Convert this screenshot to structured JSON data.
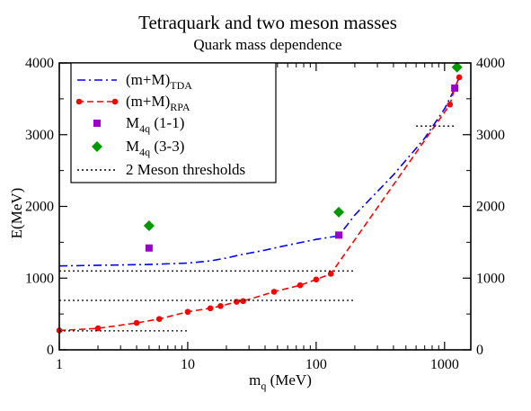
{
  "chart_data": {
    "type": "line",
    "title": "Tetraquark and two meson masses",
    "subtitle": "Quark mass dependence",
    "xlabel": "m",
    "xlabel_sub": "q",
    "xlabel_unit": " (MeV)",
    "ylabel": "E(MeV)",
    "x_scale": "log",
    "xlim": [
      1,
      1600
    ],
    "ylim": [
      0,
      4000
    ],
    "x_ticks": [
      {
        "v": 1,
        "label": "1"
      },
      {
        "v": 10,
        "label": "10"
      },
      {
        "v": 100,
        "label": "100"
      },
      {
        "v": 1000,
        "label": "1000"
      }
    ],
    "y_ticks": [
      {
        "v": 0,
        "label": "0"
      },
      {
        "v": 1000,
        "label": "1000"
      },
      {
        "v": 2000,
        "label": "2000"
      },
      {
        "v": 3000,
        "label": "3000"
      },
      {
        "v": 4000,
        "label": "4000"
      }
    ],
    "right_axis": true,
    "grid": false,
    "legend_position": "top-left",
    "series": [
      {
        "name": "(m+M)",
        "name_sub": "TDA",
        "kind": "line",
        "color": "#0000ff",
        "dash": "dashdot",
        "x": [
          1,
          5,
          10,
          15,
          20,
          25,
          40,
          60,
          100,
          150,
          200,
          400,
          700,
          1000,
          1200,
          1300
        ],
        "y": [
          1170,
          1190,
          1210,
          1240,
          1280,
          1320,
          1390,
          1460,
          1540,
          1590,
          1880,
          2440,
          2950,
          3360,
          3640,
          3800
        ]
      },
      {
        "name": "(m+M)",
        "name_sub": "RPA",
        "kind": "line-markers",
        "color": "#ff0000",
        "dash": "dashed",
        "x": [
          1,
          2,
          4,
          6,
          10,
          15,
          18,
          24,
          27,
          47,
          75,
          100,
          130,
          1100,
          1200,
          1300
        ],
        "y": [
          270,
          300,
          375,
          430,
          530,
          580,
          610,
          670,
          680,
          810,
          900,
          980,
          1060,
          3420,
          3650,
          3800
        ]
      },
      {
        "name": "M",
        "name_sub": "4q",
        "name_suffix": " (1-1)",
        "kind": "markers",
        "marker": "square",
        "color": "#9900cc",
        "x": [
          5,
          150,
          1200
        ],
        "y": [
          1420,
          1600,
          3650
        ]
      },
      {
        "name": "M",
        "name_sub": "4q",
        "name_suffix": " (3-3)",
        "kind": "markers",
        "marker": "diamond",
        "color": "#009900",
        "x": [
          5,
          150,
          1250
        ],
        "y": [
          1730,
          1920,
          3940
        ]
      },
      {
        "name": "2 Meson thresholds",
        "kind": "segments",
        "color": "#000000",
        "dash": "dotted",
        "segments": [
          {
            "x": [
              1,
              200
            ],
            "y": 1100
          },
          {
            "x": [
              1,
              200
            ],
            "y": 690
          },
          {
            "x": [
              1,
              10
            ],
            "y": 265
          },
          {
            "x": [
              600,
              1200
            ],
            "y": 3120
          }
        ]
      }
    ]
  }
}
